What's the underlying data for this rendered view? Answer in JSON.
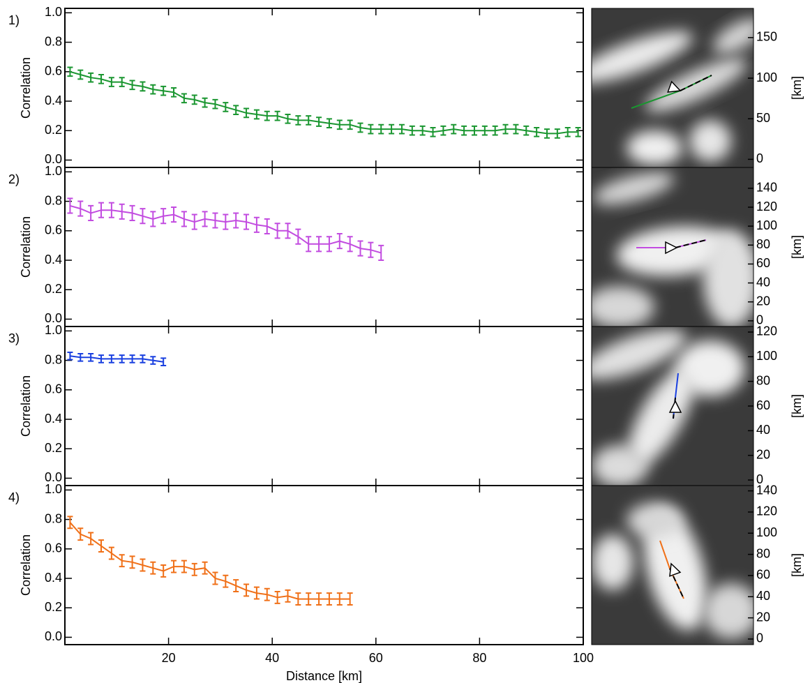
{
  "chart_data": [
    {
      "type": "line",
      "label": "1)",
      "ylabel": "Correlation",
      "x": [
        1,
        3,
        5,
        7,
        9,
        11,
        13,
        15,
        17,
        19,
        21,
        23,
        25,
        27,
        29,
        31,
        33,
        35,
        37,
        39,
        41,
        43,
        45,
        47,
        49,
        51,
        53,
        55,
        57,
        59,
        61,
        63,
        65,
        67,
        69,
        71,
        73,
        75,
        77,
        79,
        81,
        83,
        85,
        87,
        89,
        91,
        93,
        95,
        97,
        99
      ],
      "series": [
        {
          "color": "#1a9630",
          "error": 0.03,
          "values": [
            0.6,
            0.58,
            0.56,
            0.55,
            0.53,
            0.53,
            0.51,
            0.5,
            0.48,
            0.47,
            0.46,
            0.42,
            0.41,
            0.39,
            0.38,
            0.36,
            0.34,
            0.32,
            0.31,
            0.3,
            0.3,
            0.28,
            0.27,
            0.27,
            0.26,
            0.25,
            0.24,
            0.24,
            0.22,
            0.21,
            0.21,
            0.21,
            0.21,
            0.2,
            0.2,
            0.19,
            0.2,
            0.21,
            0.2,
            0.2,
            0.2,
            0.2,
            0.21,
            0.21,
            0.2,
            0.19,
            0.18,
            0.18,
            0.19,
            0.19
          ]
        }
      ],
      "xlim": [
        0,
        100
      ],
      "xticks": [
        20,
        40,
        60,
        80,
        100
      ],
      "ylim": [
        -0.05,
        1.03
      ],
      "yticks": [
        {
          "value": 0,
          "label": "0.0"
        },
        0.2,
        0.4,
        0.6,
        0.8,
        {
          "value": 1,
          "label": "1.0"
        }
      ],
      "image_ylabel": "[km]",
      "image_ylim": [
        -10,
        186
      ],
      "image_yticks": [
        0,
        50,
        100,
        150
      ]
    },
    {
      "type": "line",
      "label": "2)",
      "ylabel": "Correlation",
      "x": [
        1,
        3,
        5,
        7,
        9,
        11,
        13,
        15,
        17,
        19,
        21,
        23,
        25,
        27,
        29,
        31,
        33,
        35,
        37,
        39,
        41,
        43,
        45,
        47,
        49,
        51,
        53,
        55,
        57,
        59,
        61
      ],
      "series": [
        {
          "color": "#c24ce0",
          "error": 0.05,
          "values": [
            0.77,
            0.75,
            0.72,
            0.74,
            0.74,
            0.73,
            0.72,
            0.7,
            0.68,
            0.7,
            0.71,
            0.68,
            0.66,
            0.68,
            0.67,
            0.66,
            0.67,
            0.66,
            0.64,
            0.63,
            0.6,
            0.6,
            0.56,
            0.51,
            0.51,
            0.51,
            0.53,
            0.51,
            0.48,
            0.47,
            0.45
          ]
        }
      ],
      "xlim": [
        0,
        100
      ],
      "xticks": [
        20,
        40,
        60,
        80,
        100
      ],
      "ylim": [
        -0.05,
        1.03
      ],
      "yticks": [
        {
          "value": 0,
          "label": "0.0"
        },
        0.2,
        0.4,
        0.6,
        0.8,
        {
          "value": 1,
          "label": "1.0"
        }
      ],
      "image_ylabel": "[km]",
      "image_ylim": [
        -6,
        162
      ],
      "image_yticks": [
        0,
        20,
        40,
        60,
        80,
        100,
        120,
        140
      ]
    },
    {
      "type": "line",
      "label": "3)",
      "ylabel": "Correlation",
      "x": [
        1,
        3,
        5,
        7,
        9,
        11,
        13,
        15,
        17,
        19
      ],
      "series": [
        {
          "color": "#1a40e0",
          "error": 0.025,
          "values": [
            0.83,
            0.82,
            0.82,
            0.81,
            0.81,
            0.81,
            0.81,
            0.81,
            0.8,
            0.79
          ]
        }
      ],
      "xlim": [
        0,
        100
      ],
      "xticks": [
        20,
        40,
        60,
        80,
        100
      ],
      "ylim": [
        -0.05,
        1.03
      ],
      "yticks": [
        {
          "value": 0,
          "label": "0.0"
        },
        0.2,
        0.4,
        0.6,
        0.8,
        {
          "value": 1,
          "label": "1.0"
        }
      ],
      "image_ylabel": "[km]",
      "image_ylim": [
        -4.5,
        124.5
      ],
      "image_yticks": [
        0,
        20,
        40,
        60,
        80,
        100,
        120
      ]
    },
    {
      "type": "line",
      "label": "4)",
      "ylabel": "Correlation",
      "xlabel": "Distance [km]",
      "x": [
        1,
        3,
        5,
        7,
        9,
        11,
        13,
        15,
        17,
        19,
        21,
        23,
        25,
        27,
        29,
        31,
        33,
        35,
        37,
        39,
        41,
        43,
        45,
        47,
        49,
        51,
        53,
        55
      ],
      "series": [
        {
          "color": "#f07018",
          "error": 0.04,
          "values": [
            0.78,
            0.7,
            0.67,
            0.62,
            0.57,
            0.52,
            0.51,
            0.49,
            0.47,
            0.45,
            0.48,
            0.48,
            0.46,
            0.47,
            0.4,
            0.38,
            0.35,
            0.32,
            0.3,
            0.29,
            0.27,
            0.28,
            0.26,
            0.26,
            0.26,
            0.26,
            0.26,
            0.26
          ]
        }
      ],
      "xlim": [
        0,
        100
      ],
      "xticks": [
        20,
        40,
        60,
        80,
        100
      ],
      "xticklabels": true,
      "ylim": [
        -0.05,
        1.03
      ],
      "yticks": [
        {
          "value": 0,
          "label": "0.0"
        },
        0.2,
        0.4,
        0.6,
        0.8,
        {
          "value": 1,
          "label": "1.0"
        }
      ],
      "image_ylabel": "[km]",
      "image_ylim": [
        -5.3,
        145
      ],
      "image_yticks": [
        0,
        20,
        40,
        60,
        80,
        100,
        120,
        140
      ]
    }
  ]
}
